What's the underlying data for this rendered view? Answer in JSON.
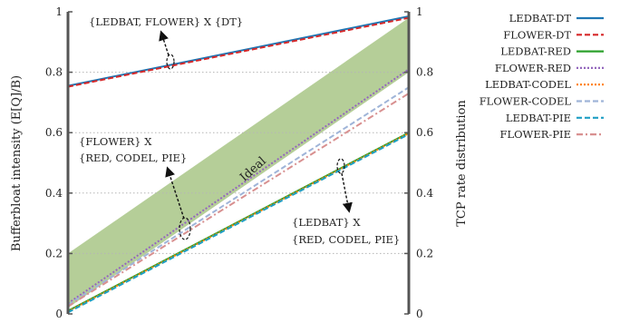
{
  "chart_data": {
    "type": "line",
    "ylabel": "Bufferbloat intensity (E[Q]/B)",
    "y2label": "TCP rate distribution",
    "ylim": [
      0,
      1
    ],
    "xlim": [
      0,
      1
    ],
    "yticks": [
      "0",
      "0.2",
      "0.4",
      "0.6",
      "0.8",
      "1"
    ],
    "y2ticks": [
      "0",
      "0.2",
      "0.4",
      "0.6",
      "0.8",
      "1"
    ],
    "grid": true,
    "legend_position": "right",
    "band": {
      "label": "Ideal",
      "color": "#a8c686",
      "lower": [
        [
          0,
          0.02
        ],
        [
          1,
          0.8
        ]
      ],
      "upper": [
        [
          0,
          0.2
        ],
        [
          1,
          0.98
        ]
      ]
    },
    "series": [
      {
        "name": "LEDBAT-DT",
        "color": "#1f77b4",
        "dash": "solid",
        "points": [
          [
            0,
            0.755
          ],
          [
            1,
            0.985
          ]
        ]
      },
      {
        "name": "FLOWER-DT",
        "color": "#d62728",
        "dash": "dash",
        "points": [
          [
            0,
            0.752
          ],
          [
            1,
            0.98
          ]
        ]
      },
      {
        "name": "LEDBAT-RED",
        "color": "#2ca02c",
        "dash": "solid",
        "points": [
          [
            0,
            0.01
          ],
          [
            1,
            0.6
          ]
        ]
      },
      {
        "name": "FLOWER-RED",
        "color": "#9467bd",
        "dash": "dot",
        "points": [
          [
            0,
            0.035
          ],
          [
            1,
            0.81
          ]
        ]
      },
      {
        "name": "LEDBAT-CODEL",
        "color": "#ff7f0e",
        "dash": "dot",
        "points": [
          [
            0,
            0.008
          ],
          [
            1,
            0.598
          ]
        ]
      },
      {
        "name": "FLOWER-CODEL",
        "color": "#9fb4d8",
        "dash": "dash",
        "points": [
          [
            0,
            0.03
          ],
          [
            1,
            0.75
          ]
        ]
      },
      {
        "name": "LEDBAT-PIE",
        "color": "#1f9fc4",
        "dash": "dash",
        "points": [
          [
            0,
            0.005
          ],
          [
            1,
            0.595
          ]
        ]
      },
      {
        "name": "FLOWER-PIE",
        "color": "#d89090",
        "dash": "dashdot",
        "points": [
          [
            0,
            0.025
          ],
          [
            1,
            0.73
          ]
        ]
      }
    ],
    "annotations": [
      {
        "lines": [
          "{LEDBAT, FLOWER} X {DT}"
        ]
      },
      {
        "lines": [
          "{FLOWER} X",
          "{RED, CODEL, PIE}"
        ]
      },
      {
        "lines": [
          "{LEDBAT} X",
          "{RED, CODEL, PIE}"
        ]
      }
    ]
  }
}
